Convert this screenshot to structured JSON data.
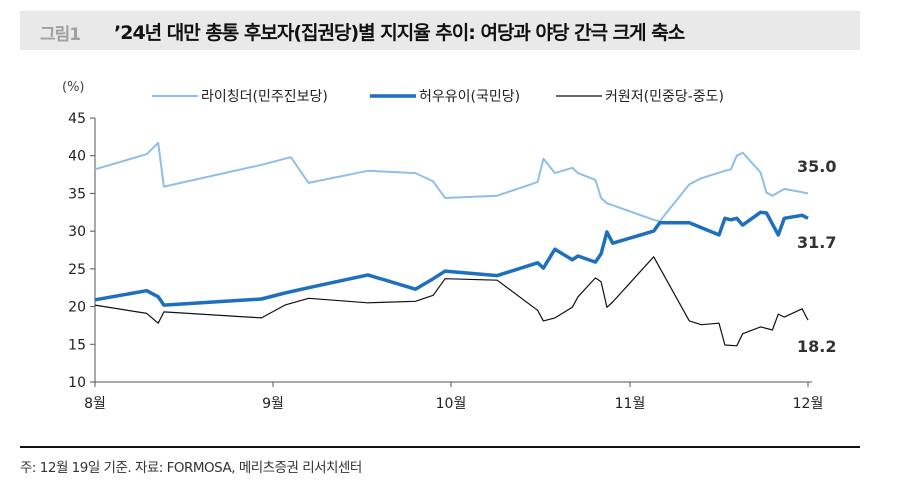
{
  "header": {
    "figure_no": "그림1",
    "title": "’24년 대만 총통 후보자(집권당)별 지지율 추이: 여당과 야당 간극 크게 축소"
  },
  "footer": {
    "note": "주: 12월 19일 기준. 자료: FORMOSA, 메리츠증권 리서치센터"
  },
  "chart_data": {
    "type": "line",
    "ylabel": "(%)",
    "ylim": [
      10,
      45
    ],
    "yticks": [
      10,
      15,
      20,
      25,
      30,
      35,
      40,
      45
    ],
    "xticks": [
      {
        "date": "2023-08-01",
        "label": "8월"
      },
      {
        "date": "2023-09-01",
        "label": "9월"
      },
      {
        "date": "2023-10-01",
        "label": "10월"
      },
      {
        "date": "2023-11-01",
        "label": "11월"
      },
      {
        "date": "2023-12-01",
        "label": "12월"
      }
    ],
    "grid": false,
    "legend": "top",
    "series": [
      {
        "name": "라이칭더(민주진보당)",
        "color": "#8fbfe8",
        "width": 2,
        "end_label": "35.0",
        "points": [
          [
            "2023-08-01",
            38.2
          ],
          [
            "2023-08-10",
            40.2
          ],
          [
            "2023-08-12",
            41.7
          ],
          [
            "2023-08-13",
            35.9
          ],
          [
            "2023-08-30",
            38.8
          ],
          [
            "2023-09-04",
            39.8
          ],
          [
            "2023-09-07",
            36.4
          ],
          [
            "2023-09-17",
            38.0
          ],
          [
            "2023-09-25",
            37.7
          ],
          [
            "2023-09-28",
            36.6
          ],
          [
            "2023-09-30",
            34.4
          ],
          [
            "2023-10-09",
            34.7
          ],
          [
            "2023-10-16",
            36.5
          ],
          [
            "2023-10-17",
            39.6
          ],
          [
            "2023-10-19",
            37.7
          ],
          [
            "2023-10-22",
            38.4
          ],
          [
            "2023-10-23",
            37.7
          ],
          [
            "2023-10-26",
            36.8
          ],
          [
            "2023-10-27",
            34.4
          ],
          [
            "2023-10-28",
            33.7
          ],
          [
            "2023-11-05",
            31.5
          ],
          [
            "2023-11-06",
            31.3
          ],
          [
            "2023-11-11",
            36.2
          ],
          [
            "2023-11-13",
            37.0
          ],
          [
            "2023-11-17",
            38.0
          ],
          [
            "2023-11-18",
            38.2
          ],
          [
            "2023-11-19",
            40.0
          ],
          [
            "2023-11-20",
            40.4
          ],
          [
            "2023-11-23",
            37.8
          ],
          [
            "2023-11-24",
            35.1
          ],
          [
            "2023-11-25",
            34.7
          ],
          [
            "2023-11-27",
            35.6
          ],
          [
            "2023-12-01",
            35.0
          ]
        ]
      },
      {
        "name": "허우유이(국민당)",
        "color": "#1f6fbf",
        "width": 3.5,
        "end_label": "31.7",
        "points": [
          [
            "2023-08-01",
            20.9
          ],
          [
            "2023-08-10",
            22.1
          ],
          [
            "2023-08-12",
            21.3
          ],
          [
            "2023-08-13",
            20.2
          ],
          [
            "2023-08-30",
            21.0
          ],
          [
            "2023-09-03",
            21.8
          ],
          [
            "2023-09-07",
            22.5
          ],
          [
            "2023-09-17",
            24.2
          ],
          [
            "2023-09-25",
            22.3
          ],
          [
            "2023-09-28",
            23.7
          ],
          [
            "2023-09-30",
            24.7
          ],
          [
            "2023-10-09",
            24.1
          ],
          [
            "2023-10-16",
            25.8
          ],
          [
            "2023-10-17",
            25.1
          ],
          [
            "2023-10-19",
            27.6
          ],
          [
            "2023-10-22",
            26.2
          ],
          [
            "2023-10-23",
            26.7
          ],
          [
            "2023-10-26",
            25.9
          ],
          [
            "2023-10-27",
            27.0
          ],
          [
            "2023-10-28",
            29.9
          ],
          [
            "2023-10-29",
            28.4
          ],
          [
            "2023-11-05",
            30.0
          ],
          [
            "2023-11-06",
            31.1
          ],
          [
            "2023-11-11",
            31.1
          ],
          [
            "2023-11-16",
            29.5
          ],
          [
            "2023-11-17",
            31.7
          ],
          [
            "2023-11-18",
            31.5
          ],
          [
            "2023-11-19",
            31.7
          ],
          [
            "2023-11-20",
            30.8
          ],
          [
            "2023-11-23",
            32.5
          ],
          [
            "2023-11-24",
            32.4
          ],
          [
            "2023-11-26",
            29.5
          ],
          [
            "2023-11-27",
            31.7
          ],
          [
            "2023-11-30",
            32.1
          ],
          [
            "2023-12-01",
            31.7
          ]
        ]
      },
      {
        "name": "커원저(민중당-중도)",
        "color": "#111111",
        "width": 1.2,
        "end_label": "18.2",
        "points": [
          [
            "2023-08-01",
            20.2
          ],
          [
            "2023-08-10",
            19.1
          ],
          [
            "2023-08-12",
            17.8
          ],
          [
            "2023-08-13",
            19.3
          ],
          [
            "2023-08-30",
            18.5
          ],
          [
            "2023-09-03",
            20.2
          ],
          [
            "2023-09-07",
            21.1
          ],
          [
            "2023-09-17",
            20.5
          ],
          [
            "2023-09-25",
            20.7
          ],
          [
            "2023-09-28",
            21.5
          ],
          [
            "2023-09-30",
            23.7
          ],
          [
            "2023-10-09",
            23.5
          ],
          [
            "2023-10-16",
            19.5
          ],
          [
            "2023-10-17",
            18.1
          ],
          [
            "2023-10-19",
            18.5
          ],
          [
            "2023-10-22",
            19.9
          ],
          [
            "2023-10-23",
            21.3
          ],
          [
            "2023-10-26",
            23.8
          ],
          [
            "2023-10-27",
            23.3
          ],
          [
            "2023-10-28",
            19.9
          ],
          [
            "2023-10-29",
            20.6
          ],
          [
            "2023-11-05",
            26.6
          ],
          [
            "2023-11-11",
            18.1
          ],
          [
            "2023-11-13",
            17.6
          ],
          [
            "2023-11-16",
            17.8
          ],
          [
            "2023-11-17",
            14.9
          ],
          [
            "2023-11-19",
            14.8
          ],
          [
            "2023-11-20",
            16.4
          ],
          [
            "2023-11-23",
            17.3
          ],
          [
            "2023-11-25",
            16.9
          ],
          [
            "2023-11-26",
            19.0
          ],
          [
            "2023-11-27",
            18.6
          ],
          [
            "2023-11-30",
            19.7
          ],
          [
            "2023-12-01",
            18.2
          ]
        ]
      }
    ]
  }
}
